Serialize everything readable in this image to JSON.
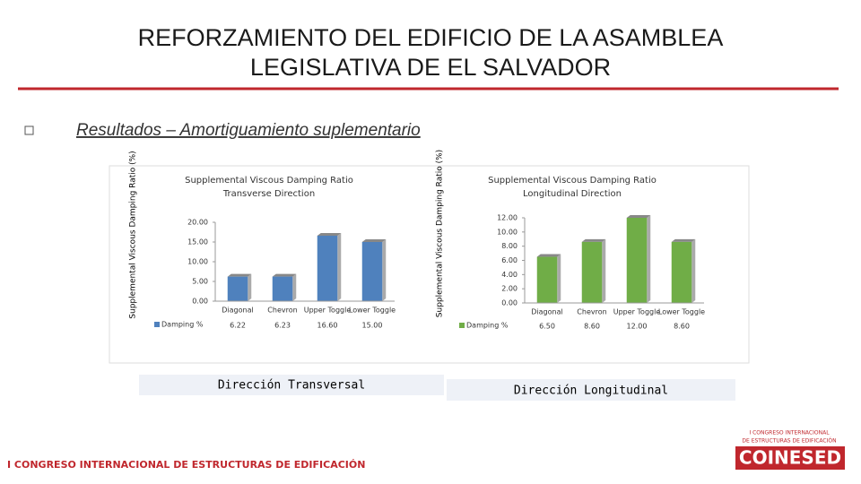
{
  "header": {
    "title_line1": "REFORZAMIENTO DEL EDIFICIO DE LA ASAMBLEA",
    "title_line2": "LEGISLATIVA DE EL SALVADOR",
    "section": "Resultados – Amortiguamiento suplementario"
  },
  "captions": [
    "Dirección Transversal",
    "Dirección Longitudinal"
  ],
  "footer": {
    "text": "I CONGRESO INTERNACIONAL DE ESTRUCTURAS DE EDIFICACIÓN",
    "logo_top": "I CONGRESO INTERNACIONAL",
    "logo_mid": "DE ESTRUCTURAS DE EDIFICACIÓN",
    "logo": "COINESED"
  },
  "chart_data": [
    {
      "type": "bar",
      "title": "Supplemental Viscous Damping Ratio Transverse Direction",
      "y_label": "Supplemental Viscous Damping Ratio (%)",
      "categories": [
        "Diagonal",
        "Chevron",
        "Upper Toggle",
        "Lower Toggle"
      ],
      "series": [
        {
          "name": "Damping %",
          "color": "#4f81bd",
          "values": [
            6.22,
            6.23,
            16.6,
            15.0
          ],
          "value_labels": [
            "6.22",
            "6.23",
            "16.60",
            "15.00"
          ]
        }
      ],
      "ylim": [
        0,
        20
      ],
      "yticks": [
        {
          "value": 0,
          "label": "0.00"
        },
        {
          "value": 5,
          "label": "5.00"
        },
        {
          "value": 10,
          "label": "10.00"
        },
        {
          "value": 15,
          "label": "15.00"
        },
        {
          "value": 20,
          "label": "20.00"
        }
      ]
    },
    {
      "type": "bar",
      "title": "Supplemental Viscous Damping Ratio Longitudinal Direction",
      "y_label": "Supplemental Viscous Damping Ratio (%)",
      "categories": [
        "Diagonal",
        "Chevron",
        "Upper Toggle",
        "Lower Toggle"
      ],
      "series": [
        {
          "name": "Damping %",
          "color": "#70ad47",
          "values": [
            6.5,
            8.6,
            12.0,
            8.6
          ],
          "value_labels": [
            "6.50",
            "8.60",
            "12.00",
            "8.60"
          ]
        }
      ],
      "ylim": [
        0,
        12
      ],
      "yticks": [
        {
          "value": 0,
          "label": "0.00"
        },
        {
          "value": 2,
          "label": "2.00"
        },
        {
          "value": 4,
          "label": "4.00"
        },
        {
          "value": 6,
          "label": "6.00"
        },
        {
          "value": 8,
          "label": "8.00"
        },
        {
          "value": 10,
          "label": "10.00"
        },
        {
          "value": 12,
          "label": "12.00"
        }
      ]
    }
  ]
}
